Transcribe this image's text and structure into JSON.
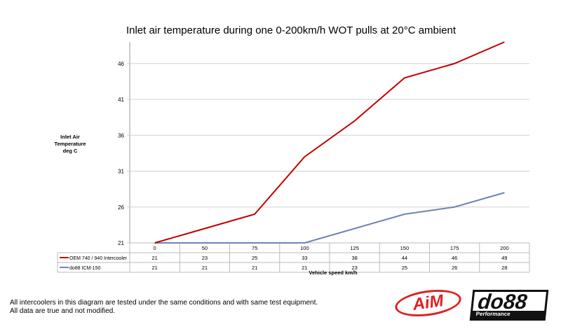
{
  "chart_data": {
    "type": "line",
    "title": "Inlet air temperature during one 0-200km/h WOT pulls at 20°C ambient",
    "ylabel": [
      "Inlet Air",
      "Temperature",
      "deg C"
    ],
    "xlabel": "Vehicle speed km/h",
    "categories": [
      "0",
      "50",
      "75",
      "100",
      "125",
      "150",
      "175",
      "200"
    ],
    "ylim": [
      21,
      49
    ],
    "yticks": [
      21,
      26,
      31,
      36,
      41,
      46
    ],
    "grid": true,
    "legend": "data-table-below",
    "series": [
      {
        "name": "OEM 740 / 940 Intercooler",
        "color": "#c00000",
        "values": [
          21,
          23,
          25,
          33,
          38,
          44,
          46,
          49
        ]
      },
      {
        "name": "do88 ICM-150",
        "color": "#6d84b4",
        "values": [
          21,
          21,
          21,
          21,
          23,
          25,
          26,
          28
        ]
      }
    ]
  },
  "footer": {
    "line1": "All intercoolers in this diagram are tested under the same conditions and with same test equipment.",
    "line2": "All data are true and not modified."
  },
  "logos": {
    "aim": "AiM",
    "do88": "do88",
    "do88_sub": "Performance"
  }
}
